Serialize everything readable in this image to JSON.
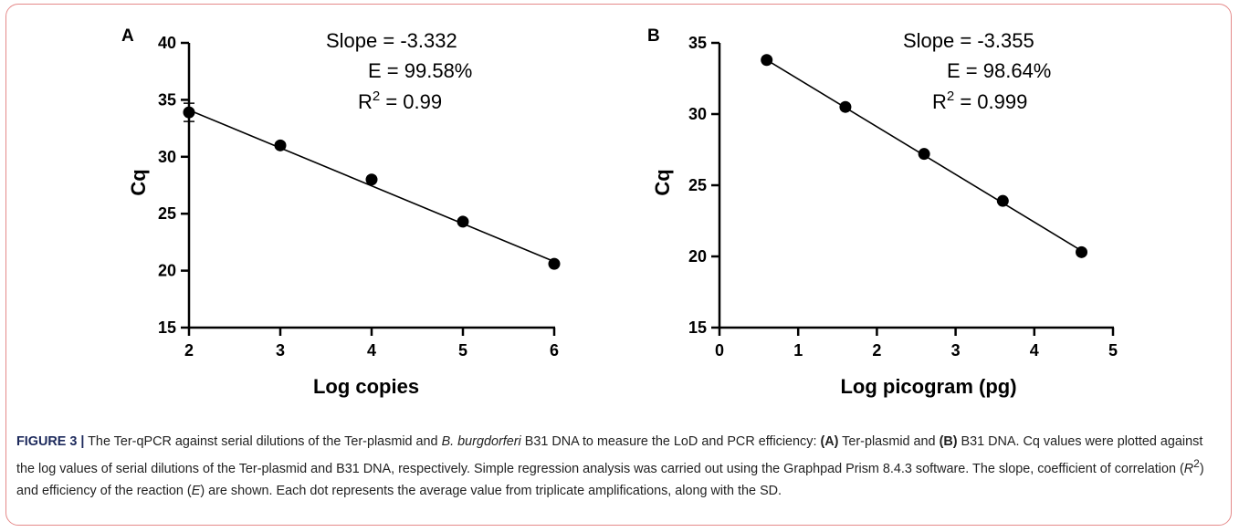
{
  "chart_data": [
    {
      "type": "scatter",
      "panel_label": "A",
      "xlabel": "Log copies",
      "ylabel": "Cq",
      "xlim": [
        2,
        6
      ],
      "ylim": [
        15,
        40
      ],
      "xticks": [
        2,
        3,
        4,
        5,
        6
      ],
      "yticks": [
        15,
        20,
        25,
        30,
        35,
        40
      ],
      "points": [
        {
          "x": 2,
          "y": 33.9,
          "sd": 0.8
        },
        {
          "x": 3,
          "y": 31.0
        },
        {
          "x": 4,
          "y": 28.0
        },
        {
          "x": 5,
          "y": 24.3
        },
        {
          "x": 6,
          "y": 20.6
        }
      ],
      "fit": {
        "x": [
          2,
          6
        ],
        "y": [
          34.1,
          20.8
        ]
      },
      "annotations": {
        "slope": "Slope = -3.332",
        "efficiency": "E = 99.58%",
        "r2_prefix": "R",
        "r2_sup": "2",
        "r2_value": " = 0.99"
      }
    },
    {
      "type": "scatter",
      "panel_label": "B",
      "xlabel": "Log picogram (pg)",
      "ylabel": "Cq",
      "xlim": [
        0,
        5
      ],
      "ylim": [
        15,
        35
      ],
      "xticks": [
        0,
        1,
        2,
        3,
        4,
        5
      ],
      "yticks": [
        15,
        20,
        25,
        30,
        35
      ],
      "points": [
        {
          "x": 0.6,
          "y": 33.8
        },
        {
          "x": 1.6,
          "y": 30.5
        },
        {
          "x": 2.6,
          "y": 27.2
        },
        {
          "x": 3.6,
          "y": 23.9
        },
        {
          "x": 4.6,
          "y": 20.3
        }
      ],
      "fit": {
        "x": [
          0.6,
          4.6
        ],
        "y": [
          33.8,
          20.4
        ]
      },
      "annotations": {
        "slope": "Slope = -3.355",
        "efficiency": "E = 98.64%",
        "r2_prefix": "R",
        "r2_sup": "2",
        "r2_value": " = 0.999"
      }
    }
  ],
  "caption": {
    "label": "FIGURE 3 |",
    "t1": " The Ter-qPCR against serial dilutions of the Ter-plasmid and ",
    "t2": "B. burgdorferi",
    "t3": " B31 DNA to measure the LoD and PCR efficiency: ",
    "t4": "(A)",
    "t5": " Ter-plasmid and ",
    "t6": "(B)",
    "t7": " B31 DNA. Cq values were plotted against the log values of serial dilutions of the Ter-plasmid and B31 DNA, respectively. Simple regression analysis was carried out using the Graphpad Prism 8.4.3 software. The slope, coefficient of correlation (",
    "t8": "R",
    "t9": "2",
    "t10": ") and efficiency of the reaction (",
    "t11": "E",
    "t12": ") are shown. Each dot represents the average value from triplicate amplifications, along with the SD."
  }
}
